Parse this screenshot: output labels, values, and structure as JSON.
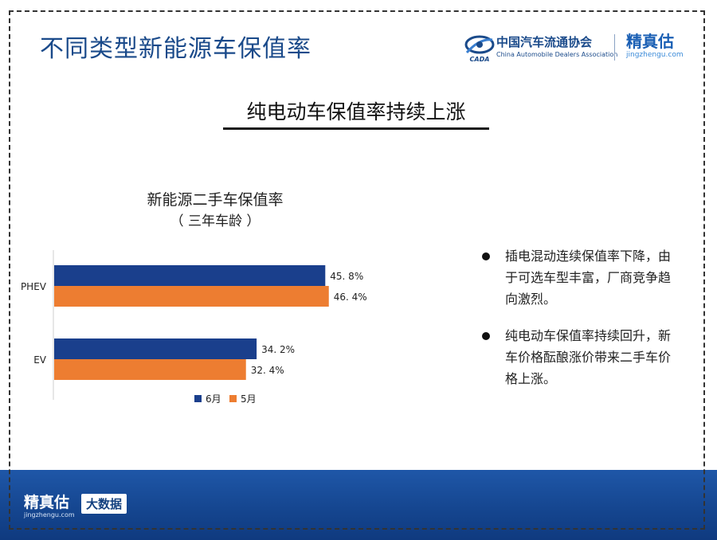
{
  "header": {
    "title": "不同类型新能源车保值率",
    "assoc_name_cn": "中国汽车流通协会",
    "assoc_name_en": "China Automobile Dealers Association",
    "assoc_icon_text": "CADA",
    "brand_cn": "精真估",
    "brand_en": "jingzhengu.com"
  },
  "subtitle": "纯电动车保值率持续上涨",
  "chart_data": {
    "type": "bar",
    "orientation": "horizontal",
    "title": "新能源二手车保值率",
    "subtitle": "（ 三年车龄 ）",
    "categories": [
      "PHEV",
      "EV"
    ],
    "series": [
      {
        "name": "6月",
        "values": [
          45.8,
          34.2
        ],
        "labels": [
          "45. 8%",
          "34. 2%"
        ],
        "color": "#1a3f8c"
      },
      {
        "name": "5月",
        "values": [
          46.4,
          32.4
        ],
        "labels": [
          "46. 4%",
          "32. 4%"
        ],
        "color": "#ed7d31"
      }
    ],
    "xlim": [
      0,
      50
    ],
    "grid": false,
    "legend_position": "bottom"
  },
  "bullets": [
    "插电混动连续保值率下降，由于可选车型丰富，厂商竞争趋向激烈。",
    "纯电动车保值率持续回升，新车价格酝酿涨价带来二手车价格上涨。"
  ],
  "footer": {
    "brand_cn": "精真估",
    "brand_en": "jingzhengu.com",
    "badge": "大数据"
  },
  "colors": {
    "title_blue": "#1a4a8a",
    "footer_blue": "#154690",
    "series_june": "#1a3f8c",
    "series_may": "#ed7d31"
  }
}
